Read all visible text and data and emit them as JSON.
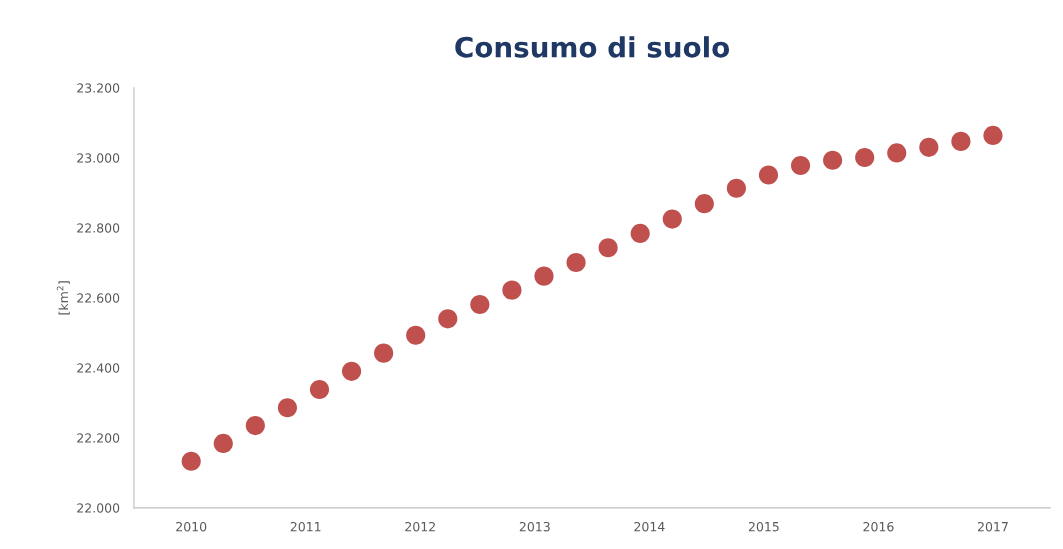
{
  "chart_data": {
    "type": "scatter",
    "title": "Consumo di suolo",
    "ylabel": "[km$^{2}$]",
    "x": [
      2010,
      2010.28,
      2010.56,
      2010.84,
      2011.12,
      2011.4,
      2011.68,
      2011.96,
      2012.24,
      2012.52,
      2012.8,
      2013.08,
      2013.36,
      2013.64,
      2013.92,
      2014.2,
      2014.48,
      2014.76,
      2015.04,
      2015.32,
      2015.6,
      2015.88,
      2016.16,
      2016.44,
      2016.72,
      2017
    ],
    "series": [
      {
        "color": "#c0504d",
        "values": [
          22133,
          22184,
          22235,
          22286,
          22338,
          22390,
          22442,
          22493,
          22540,
          22581,
          22622,
          22662,
          22701,
          22743,
          22784,
          22825,
          22869,
          22913,
          22951,
          22978,
          22993,
          23001,
          23014,
          23030,
          23047,
          23064
        ]
      }
    ],
    "xlim": [
      2009.5,
      2017.5
    ],
    "xticks": [
      2010,
      2011,
      2012,
      2013,
      2014,
      2015,
      2016,
      2017
    ],
    "ylim": [
      22000,
      23200
    ],
    "yticks": [
      {
        "value": 22000,
        "label": "22.000"
      },
      {
        "value": 22200,
        "label": "22.200"
      },
      {
        "value": 22400,
        "label": "22.400"
      },
      {
        "value": 22600,
        "label": "22.600"
      },
      {
        "value": 22800,
        "label": "22.800"
      },
      {
        "value": 23000,
        "label": "23.000"
      },
      {
        "value": 23200,
        "label": "23.200"
      }
    ],
    "grid": false,
    "legend": false,
    "marker": "circle"
  }
}
